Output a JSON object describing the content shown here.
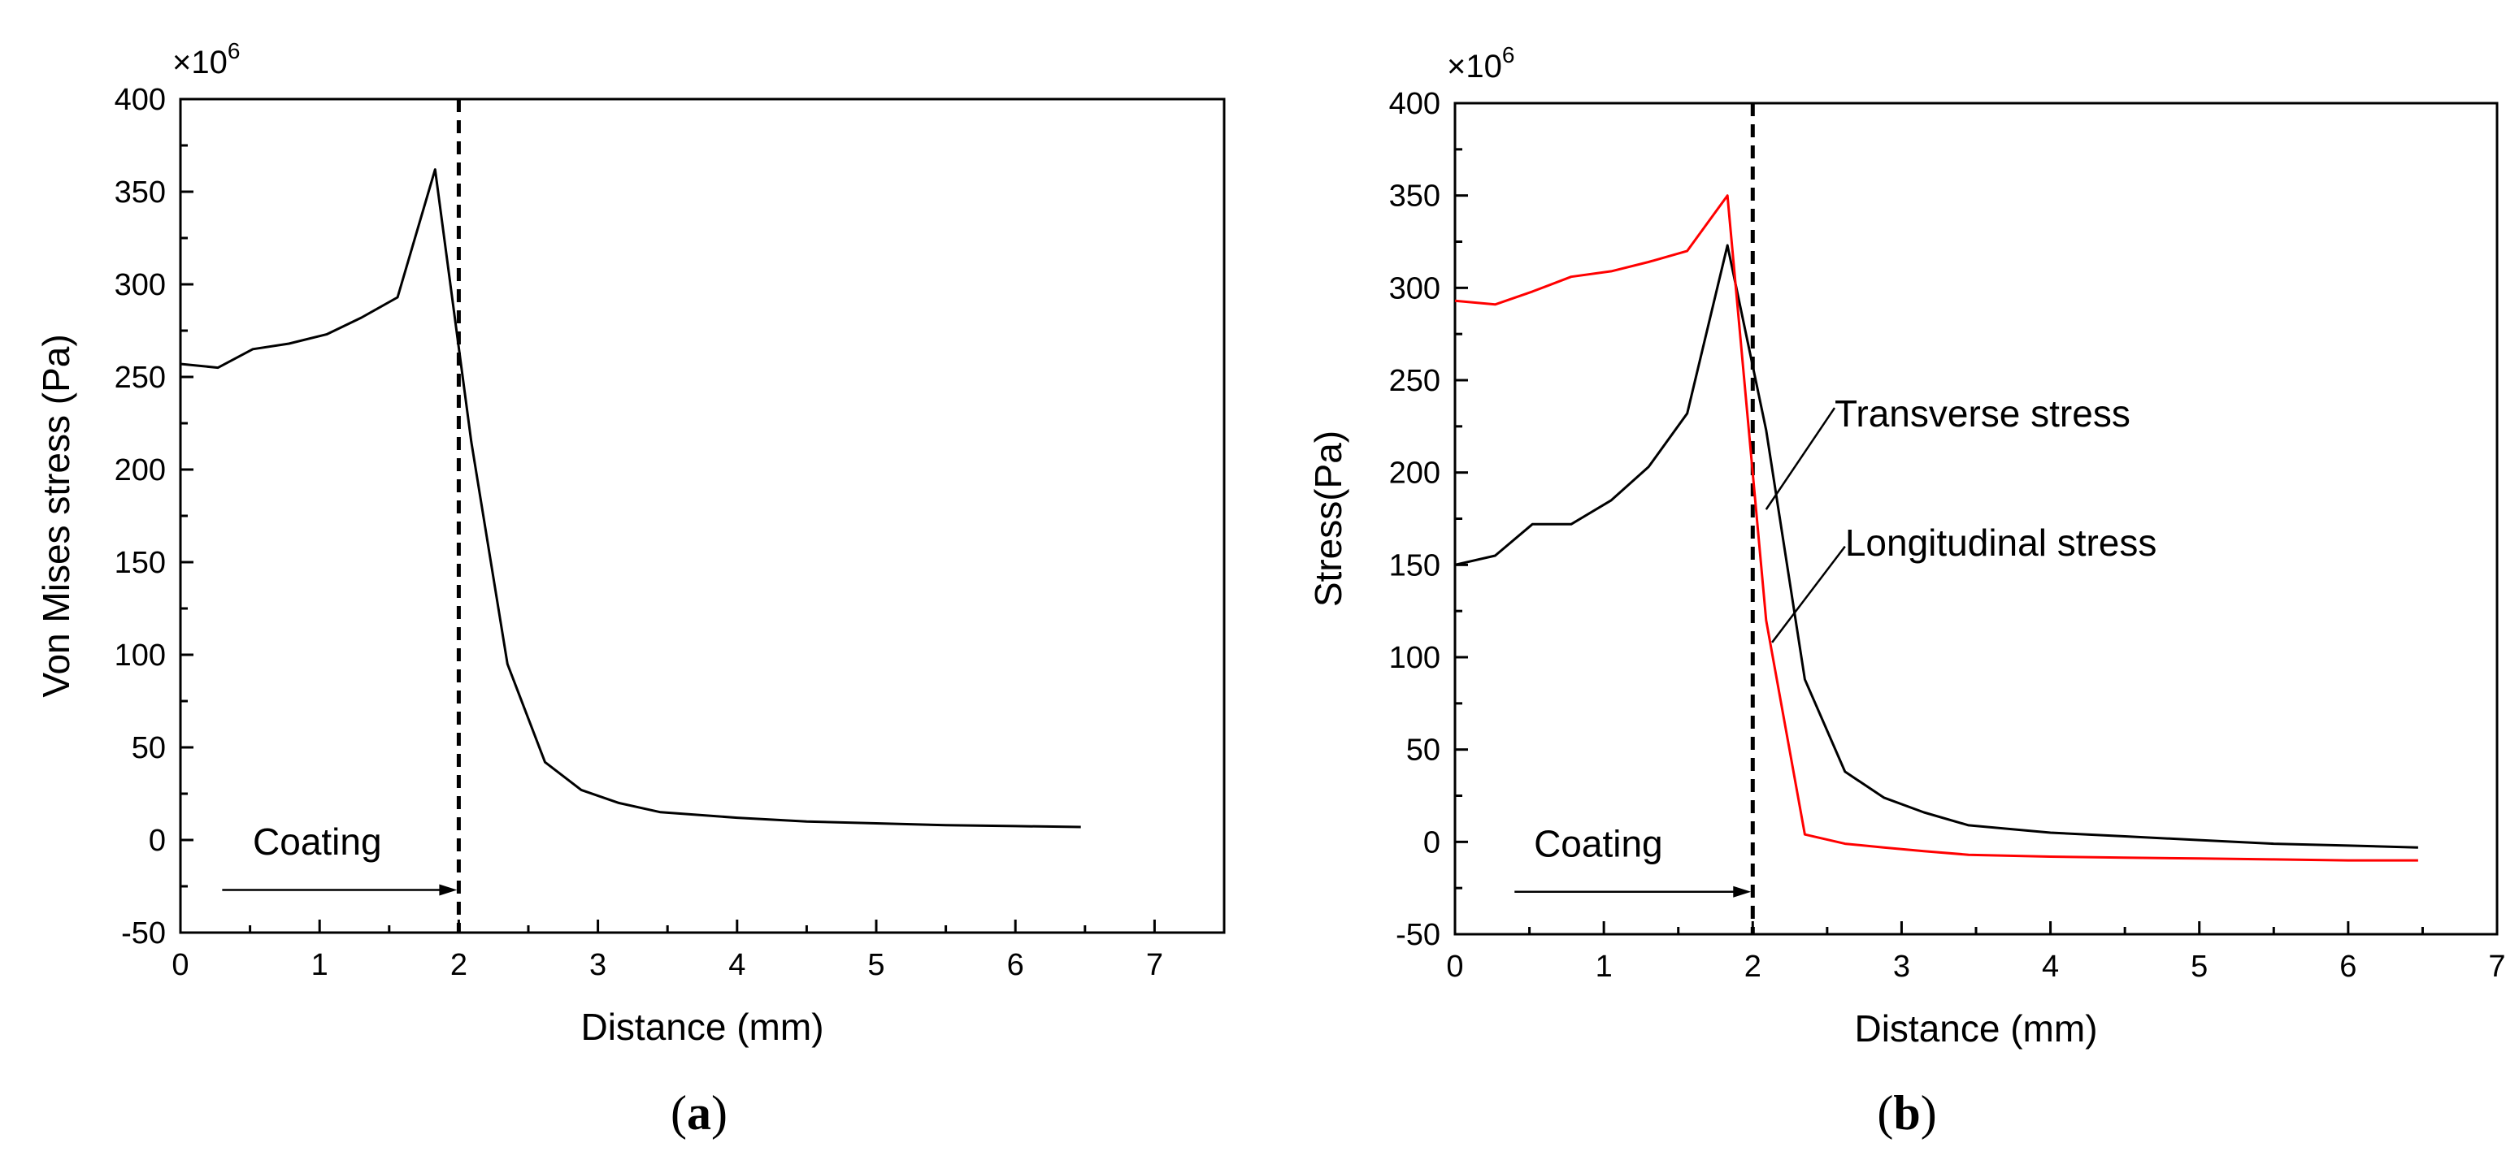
{
  "chart_data": [
    {
      "panel_label": "a",
      "type": "line",
      "title": "",
      "xlabel": "Distance (mm)",
      "ylabel": "Von Mises stress (Pa)",
      "y_multiplier_prefix": "×10",
      "y_multiplier_exponent": "6",
      "xlim": [
        0,
        7.5
      ],
      "ylim": [
        -50,
        400
      ],
      "x_ticks": [
        0,
        1,
        2,
        3,
        4,
        5,
        6,
        7
      ],
      "y_ticks": [
        -50,
        0,
        50,
        100,
        150,
        200,
        250,
        300,
        350,
        400
      ],
      "grid": false,
      "series": [
        {
          "name": "Von Mises stress",
          "color": "#000000",
          "x": [
            0,
            0.27,
            0.52,
            0.78,
            1.05,
            1.3,
            1.56,
            1.83,
            2.09,
            2.35,
            2.62,
            2.88,
            3.15,
            3.45,
            4.0,
            4.5,
            5.0,
            5.5,
            6.0,
            6.47
          ],
          "values": [
            257,
            255,
            265,
            268,
            273,
            282,
            293,
            362,
            215,
            95,
            42,
            27,
            20,
            15,
            12,
            10,
            9,
            8,
            7.5,
            7
          ]
        }
      ],
      "reference_line": {
        "x": 2.0,
        "style": "dashed"
      },
      "annotations": [
        {
          "text": "Coating",
          "arrow_from_x": 0.3,
          "arrow_to_x": 2.0,
          "arrow_y": -27,
          "text_x": 0.52,
          "text_y": -8
        }
      ]
    },
    {
      "panel_label": "b",
      "type": "line",
      "title": "",
      "xlabel": "Distance (mm)",
      "ylabel": "Stress(Pa)",
      "y_multiplier_prefix": "×10",
      "y_multiplier_exponent": "6",
      "xlim": [
        0,
        7
      ],
      "ylim": [
        -50,
        400
      ],
      "x_ticks": [
        0,
        1,
        2,
        3,
        4,
        5,
        6,
        7
      ],
      "y_ticks": [
        -50,
        0,
        50,
        100,
        150,
        200,
        250,
        300,
        350,
        400
      ],
      "grid": false,
      "series": [
        {
          "name": "Transverse stress",
          "color": "#000000",
          "x": [
            0,
            0.27,
            0.52,
            0.78,
            1.05,
            1.3,
            1.56,
            1.83,
            2.09,
            2.35,
            2.62,
            2.88,
            3.15,
            3.45,
            4.0,
            4.5,
            5.0,
            5.5,
            6.0,
            6.47
          ],
          "values": [
            150,
            155,
            172,
            172,
            185,
            203,
            232,
            323,
            223,
            88,
            38,
            24,
            16,
            9,
            5,
            3,
            1,
            -1,
            -2,
            -3
          ]
        },
        {
          "name": "Longitudinal stress",
          "color": "#ff0000",
          "x": [
            0,
            0.27,
            0.52,
            0.78,
            1.05,
            1.3,
            1.56,
            1.83,
            2.09,
            2.35,
            2.62,
            2.88,
            3.15,
            3.45,
            4.0,
            4.5,
            5.0,
            5.5,
            6.0,
            6.47
          ],
          "values": [
            293,
            291,
            298,
            306,
            309,
            314,
            320,
            350,
            120,
            4,
            -1,
            -3,
            -5,
            -7,
            -8,
            -8.5,
            -9,
            -9.5,
            -10,
            -10
          ]
        }
      ],
      "reference_line": {
        "x": 2.0,
        "style": "dashed"
      },
      "annotations": [
        {
          "text": "Coating",
          "arrow_from_x": 0.4,
          "arrow_to_x": 2.0,
          "arrow_y": -27,
          "text_x": 0.53,
          "text_y": -8
        },
        {
          "text": "Transverse stress",
          "text_x": 2.55,
          "text_y": 225,
          "leader_from": [
            2.09,
            180
          ],
          "leader_to": [
            2.55,
            235
          ]
        },
        {
          "text": "Longitudinal stress",
          "text_x": 2.62,
          "text_y": 155,
          "leader_from": [
            2.13,
            108
          ],
          "leader_to": [
            2.62,
            160
          ]
        }
      ]
    }
  ]
}
